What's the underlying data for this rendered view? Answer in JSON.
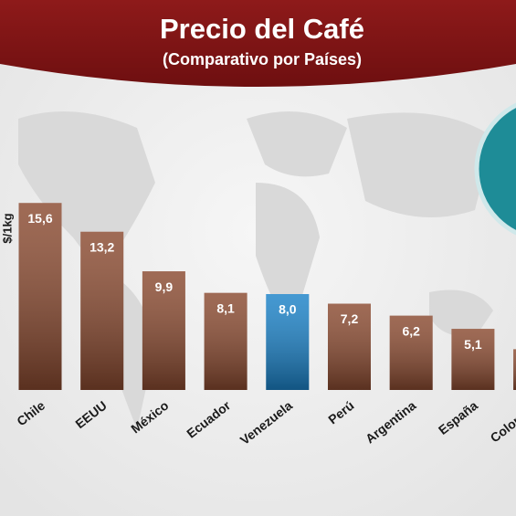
{
  "chart_data": {
    "type": "bar",
    "title": "Precio del Café",
    "subtitle": "(Comparativo por Países)",
    "y_label": "$/1kg",
    "categories": [
      "Chile",
      "EEUU",
      "México",
      "Ecuador",
      "Venezuela",
      "Perú",
      "Argentina",
      "España",
      "Colombia"
    ],
    "values": [
      15.6,
      13.2,
      9.9,
      8.1,
      8.0,
      7.2,
      6.2,
      5.1,
      3.4
    ],
    "value_labels": [
      "15,6",
      "13,2",
      "9,9",
      "8,1",
      "8,0",
      "7,2",
      "6,2",
      "5,1",
      null
    ],
    "colors": [
      "#8a4a30",
      "#8a4a30",
      "#8a4a30",
      "#8a4a30",
      "#1b82c8",
      "#8a4a30",
      "#8a4a30",
      "#8a4a30",
      "#8a4a30"
    ],
    "ylim": [
      0,
      16
    ]
  }
}
